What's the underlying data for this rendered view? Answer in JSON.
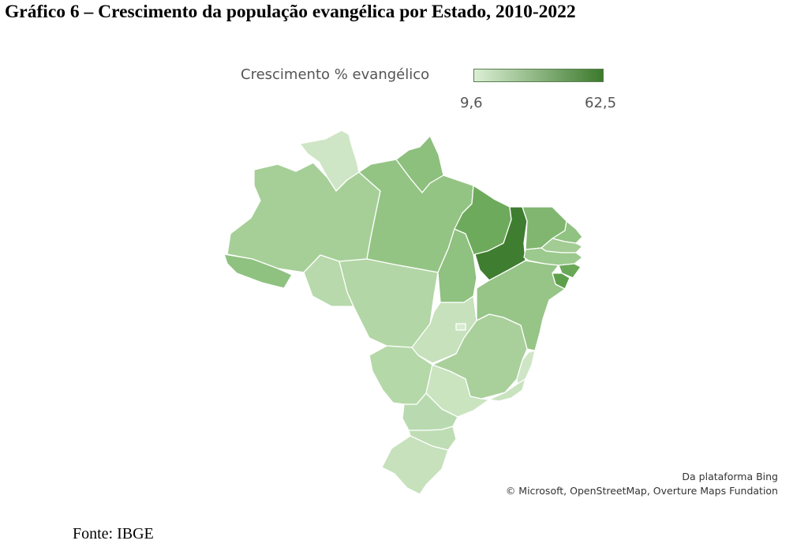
{
  "title": "Gráfico 6 – Crescimento da população evangélica por Estado, 2010-2022",
  "legend": {
    "label": "Crescimento % evangélico",
    "min": "9,6",
    "max": "62,5",
    "color_min": "#dbefd4",
    "color_max": "#3c7a2c"
  },
  "map_data": {
    "type": "choropleth",
    "region": "Brasil",
    "scale_min": 9.6,
    "scale_max": 62.5,
    "states": [
      {
        "uf": "RR",
        "color": "#cfe6c6"
      },
      {
        "uf": "AM",
        "color": "#a6cf98"
      },
      {
        "uf": "AC",
        "color": "#8fc180"
      },
      {
        "uf": "RO",
        "color": "#b8d9ab"
      },
      {
        "uf": "AP",
        "color": "#8dbf7d"
      },
      {
        "uf": "PA",
        "color": "#93c484"
      },
      {
        "uf": "MT",
        "color": "#b2d6a5"
      },
      {
        "uf": "TO",
        "color": "#8fc180"
      },
      {
        "uf": "MA",
        "color": "#6eaa5c"
      },
      {
        "uf": "PI",
        "color": "#3f7d30"
      },
      {
        "uf": "CE",
        "color": "#80b670"
      },
      {
        "uf": "RN",
        "color": "#90c281"
      },
      {
        "uf": "PB",
        "color": "#a2cc93"
      },
      {
        "uf": "PE",
        "color": "#9cc98d"
      },
      {
        "uf": "AL",
        "color": "#6aa858"
      },
      {
        "uf": "SE",
        "color": "#5e9f4c"
      },
      {
        "uf": "BA",
        "color": "#96c587"
      },
      {
        "uf": "GO",
        "color": "#c6e1bb"
      },
      {
        "uf": "DF",
        "color": "#d7ebcf"
      },
      {
        "uf": "MG",
        "color": "#a9d09b"
      },
      {
        "uf": "ES",
        "color": "#cfe6c6"
      },
      {
        "uf": "RJ",
        "color": "#c9e3bf"
      },
      {
        "uf": "MS",
        "color": "#b5d8a8"
      },
      {
        "uf": "SP",
        "color": "#cae4c0"
      },
      {
        "uf": "PR",
        "color": "#b9dab0"
      },
      {
        "uf": "SC",
        "color": "#bfddb4"
      },
      {
        "uf": "RS",
        "color": "#c6e1bb"
      }
    ]
  },
  "attribution": {
    "line1": "Da plataforma Bing",
    "line2": "© Microsoft, OpenStreetMap, Overture Maps Fundation"
  },
  "source": "Fonte: IBGE"
}
